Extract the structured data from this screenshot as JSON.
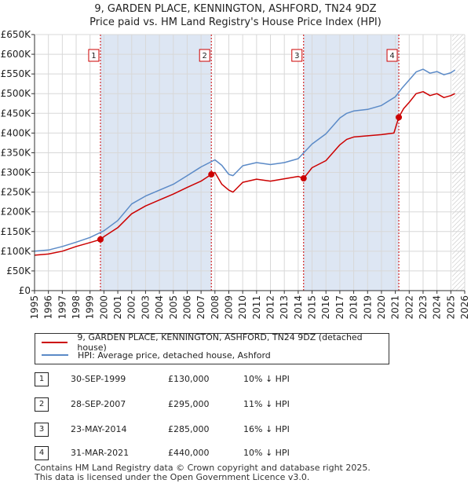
{
  "title_line1": "9, GARDEN PLACE, KENNINGTON, ASHFORD, TN24 9DZ",
  "title_line2": "Price paid vs. HM Land Registry's House Price Index (HPI)",
  "colors": {
    "property": "#cc0000",
    "hpi": "#5b8ac7",
    "shade": "#dde6f3",
    "vline": "#cc0000"
  },
  "legend": {
    "property": "9, GARDEN PLACE, KENNINGTON, ASHFORD, TN24 9DZ (detached house)",
    "hpi": "HPI: Average price, detached house, Ashford"
  },
  "sales": [
    {
      "num": "1",
      "date": "30-SEP-1999",
      "price": "£130,000",
      "hpi": "10% ↓ HPI"
    },
    {
      "num": "2",
      "date": "28-SEP-2007",
      "price": "£295,000",
      "hpi": "11% ↓ HPI"
    },
    {
      "num": "3",
      "date": "23-MAY-2014",
      "price": "£285,000",
      "hpi": "16% ↓ HPI"
    },
    {
      "num": "4",
      "date": "31-MAR-2021",
      "price": "£440,000",
      "hpi": "10% ↓ HPI"
    }
  ],
  "footer_line1": "Contains HM Land Registry data © Crown copyright and database right 2025.",
  "footer_line2": "This data is licensed under the Open Government Licence v3.0.",
  "chart_data": {
    "type": "line",
    "title": "9, GARDEN PLACE, KENNINGTON, ASHFORD, TN24 9DZ — Price paid vs. HM Land Registry's House Price Index (HPI)",
    "xlim": [
      1995,
      2026
    ],
    "ylim": [
      0,
      650000
    ],
    "x_ticks": [
      1995,
      1996,
      1997,
      1998,
      1999,
      2000,
      2001,
      2002,
      2003,
      2004,
      2005,
      2006,
      2007,
      2008,
      2009,
      2010,
      2011,
      2012,
      2013,
      2014,
      2015,
      2016,
      2017,
      2018,
      2019,
      2020,
      2021,
      2022,
      2023,
      2024,
      2025,
      2026
    ],
    "y_ticks": [
      0,
      50000,
      100000,
      150000,
      200000,
      250000,
      300000,
      350000,
      400000,
      450000,
      500000,
      550000,
      600000,
      650000
    ],
    "y_tick_labels": [
      "£0",
      "£50K",
      "£100K",
      "£150K",
      "£200K",
      "£250K",
      "£300K",
      "£350K",
      "£400K",
      "£450K",
      "£500K",
      "£550K",
      "£600K",
      "£650K"
    ],
    "grid": true,
    "shaded_periods": [
      [
        1999.75,
        2007.74
      ],
      [
        2014.39,
        2021.25
      ]
    ],
    "hatched_from": 2025.1,
    "sale_markers": [
      {
        "label": "1",
        "x": 1999.75,
        "y": 130000
      },
      {
        "label": "2",
        "x": 2007.74,
        "y": 295000
      },
      {
        "label": "3",
        "x": 2014.39,
        "y": 285000
      },
      {
        "label": "4",
        "x": 2021.25,
        "y": 440000
      }
    ],
    "series": [
      {
        "name": "9, GARDEN PLACE, KENNINGTON, ASHFORD, TN24 9DZ (detached house)",
        "x": [
          1995,
          1996,
          1997,
          1998,
          1999,
          1999.75,
          2000,
          2001,
          2002,
          2003,
          2004,
          2005,
          2006,
          2007,
          2007.74,
          2008,
          2008.5,
          2009,
          2009.3,
          2010,
          2011,
          2012,
          2013,
          2014,
          2014.39,
          2015,
          2016,
          2017,
          2017.5,
          2018,
          2019,
          2020,
          2020.9,
          2021.25,
          2021.6,
          2022,
          2022.5,
          2023,
          2023.5,
          2024,
          2024.5,
          2025,
          2025.3
        ],
        "values": [
          90000,
          93000,
          100000,
          112000,
          122000,
          130000,
          137000,
          160000,
          195000,
          215000,
          230000,
          245000,
          262000,
          278000,
          295000,
          300000,
          270000,
          255000,
          250000,
          275000,
          283000,
          278000,
          284000,
          290000,
          285000,
          312000,
          330000,
          370000,
          384000,
          390000,
          393000,
          396000,
          400000,
          440000,
          462000,
          478000,
          500000,
          505000,
          495000,
          500000,
          490000,
          495000,
          500000
        ]
      },
      {
        "name": "HPI: Average price, detached house, Ashford",
        "x": [
          1995,
          1996,
          1997,
          1998,
          1999,
          2000,
          2001,
          2002,
          2003,
          2004,
          2005,
          2006,
          2007,
          2008,
          2008.5,
          2009,
          2009.3,
          2010,
          2011,
          2012,
          2013,
          2014,
          2015,
          2016,
          2017,
          2017.5,
          2018,
          2019,
          2020,
          2021,
          2021.5,
          2022,
          2022.5,
          2023,
          2023.5,
          2024,
          2024.5,
          2025,
          2025.3
        ],
        "values": [
          100000,
          103000,
          112000,
          123000,
          135000,
          152000,
          178000,
          220000,
          240000,
          255000,
          270000,
          292000,
          314000,
          332000,
          318000,
          295000,
          292000,
          317000,
          325000,
          320000,
          325000,
          335000,
          372000,
          398000,
          438000,
          450000,
          456000,
          460000,
          470000,
          492000,
          515000,
          535000,
          555000,
          562000,
          552000,
          556000,
          548000,
          553000,
          560000
        ]
      }
    ]
  }
}
